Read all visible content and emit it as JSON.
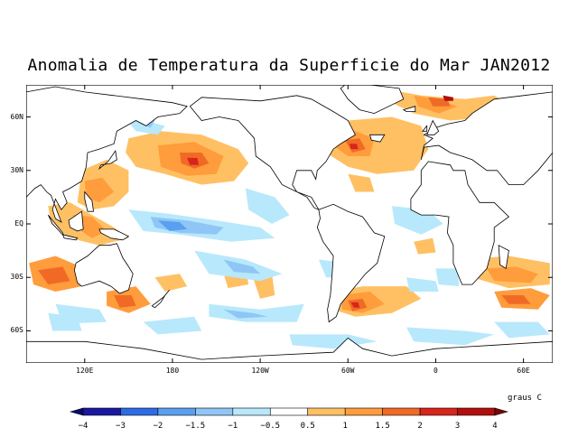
{
  "title": "Anomalia de Temperatura da Superficie do Mar JAN2012",
  "map": {
    "lat_labels": [
      "60N",
      "30N",
      "EQ",
      "30S",
      "60S"
    ],
    "lon_labels": [
      "120E",
      "180",
      "120W",
      "60W",
      "0",
      "60E"
    ]
  },
  "colorbar": {
    "units": "graus C",
    "tick_labels": [
      "−4",
      "−3",
      "−2",
      "−1.5",
      "−1",
      "−0.5",
      "0.5",
      "1",
      "1.5",
      "2",
      "3",
      "4"
    ],
    "colors": [
      "#1a18a0",
      "#2d6be6",
      "#5aa0f0",
      "#8fc6f6",
      "#b8e8fb",
      "#ffffff",
      "#ffc063",
      "#ff9c3c",
      "#f06a26",
      "#d8241a",
      "#b30d0d"
    ],
    "under_color": "#0a0a70",
    "over_color": "#7a0505"
  }
}
